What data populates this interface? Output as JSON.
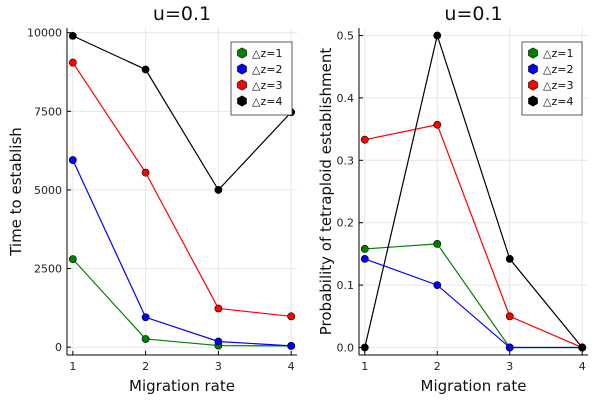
{
  "chart_data": [
    {
      "type": "line",
      "title": "u=0.1",
      "xlabel": "Migration rate",
      "ylabel": "Time to establish",
      "x": [
        1,
        2,
        3,
        4
      ],
      "xticks": [
        "1",
        "2",
        "3",
        "4"
      ],
      "yticks": [
        "0",
        "2500",
        "5000",
        "7500",
        "10000"
      ],
      "xlim": [
        0.92,
        4.08
      ],
      "ylim": [
        -250,
        10150
      ],
      "grid": true,
      "legend_position": "top-right",
      "series": [
        {
          "name": "△z=1",
          "color": "#008000",
          "values": [
            2800,
            260,
            50,
            40
          ]
        },
        {
          "name": "△z=2",
          "color": "#0000ff",
          "values": [
            5950,
            950,
            180,
            40
          ]
        },
        {
          "name": "△z=3",
          "color": "#ff0000",
          "values": [
            9050,
            5550,
            1230,
            980
          ]
        },
        {
          "name": "△z=4",
          "color": "#000000",
          "values": [
            9900,
            8830,
            5000,
            7470
          ]
        }
      ]
    },
    {
      "type": "line",
      "title": "u=0.1",
      "xlabel": "Migration rate",
      "ylabel": "Probability of tetraploid establishment",
      "x": [
        1,
        2,
        3,
        4
      ],
      "xticks": [
        "1",
        "2",
        "3",
        "4"
      ],
      "yticks": [
        "0.0",
        "0.1",
        "0.2",
        "0.3",
        "0.4",
        "0.5"
      ],
      "xlim": [
        0.92,
        4.08
      ],
      "ylim": [
        -0.012,
        0.512
      ],
      "grid": true,
      "legend_position": "top-right",
      "series": [
        {
          "name": "△z=1",
          "color": "#008000",
          "values": [
            0.158,
            0.166,
            0.0,
            0.0
          ]
        },
        {
          "name": "△z=2",
          "color": "#0000ff",
          "values": [
            0.142,
            0.1,
            0.0,
            0.0
          ]
        },
        {
          "name": "△z=3",
          "color": "#ff0000",
          "values": [
            0.333,
            0.357,
            0.05,
            0.0
          ]
        },
        {
          "name": "△z=4",
          "color": "#000000",
          "values": [
            0.0,
            0.5,
            0.142,
            0.0
          ]
        }
      ]
    }
  ]
}
